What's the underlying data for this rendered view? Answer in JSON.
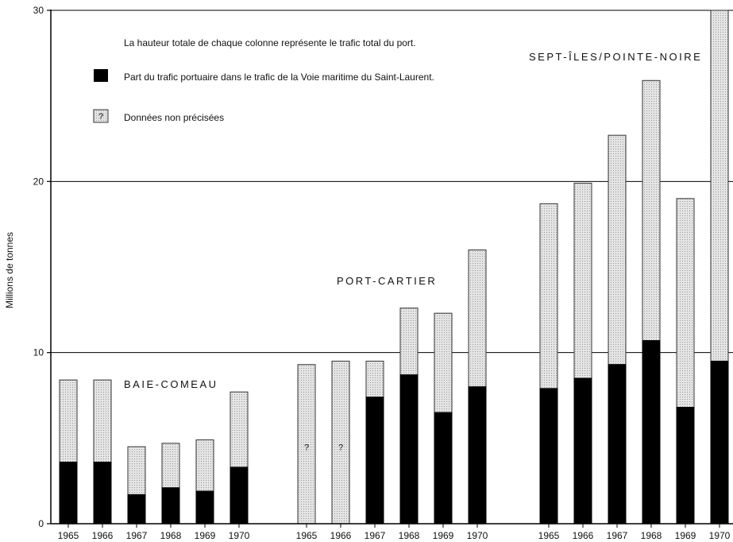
{
  "chart_data": {
    "type": "bar",
    "stacked": true,
    "ylabel": "Millions de tonnes",
    "ylim": [
      0,
      30
    ],
    "yticks": [
      0,
      10,
      20,
      30
    ],
    "grid": true,
    "legend": {
      "note": "La hauteur totale de chaque colonne représente le trafic total du port.",
      "items": [
        {
          "key": "seaway",
          "label": "Part du trafic portuaire dans le trafic de la Voie maritime du Saint-Laurent.",
          "color": "#000000"
        },
        {
          "key": "unspecified",
          "label": "Données non précisées",
          "color": "#dcdcdc",
          "marker": "?"
        }
      ]
    },
    "groups": [
      {
        "name": "BAIE-COMEAU",
        "categories": [
          "1965",
          "1966",
          "1967",
          "1968",
          "1969",
          "1970"
        ],
        "total": [
          8.4,
          8.4,
          4.5,
          4.7,
          4.9,
          7.7
        ],
        "seaway": [
          3.6,
          3.6,
          1.7,
          2.1,
          1.9,
          3.3
        ],
        "unspecified": [
          false,
          false,
          false,
          false,
          false,
          false
        ]
      },
      {
        "name": "PORT-CARTIER",
        "categories": [
          "1965",
          "1966",
          "1967",
          "1968",
          "1969",
          "1970"
        ],
        "total": [
          9.3,
          9.5,
          9.5,
          12.6,
          12.3,
          16.0
        ],
        "seaway": [
          0,
          0,
          7.4,
          8.7,
          6.5,
          8.0
        ],
        "unspecified": [
          true,
          true,
          false,
          false,
          false,
          false
        ]
      },
      {
        "name": "SEPT-ÎLES/POINTE-NOIRE",
        "categories": [
          "1965",
          "1966",
          "1967",
          "1968",
          "1969",
          "1970"
        ],
        "total": [
          18.7,
          19.9,
          22.7,
          25.9,
          19.0,
          30.0
        ],
        "seaway": [
          7.9,
          8.5,
          9.3,
          10.7,
          6.8,
          9.5
        ],
        "unspecified": [
          false,
          false,
          false,
          false,
          false,
          false
        ]
      }
    ],
    "colors": {
      "seaway": "#000000",
      "remainder": "#dcdcdc",
      "remainder_stroke": "#333333"
    }
  }
}
